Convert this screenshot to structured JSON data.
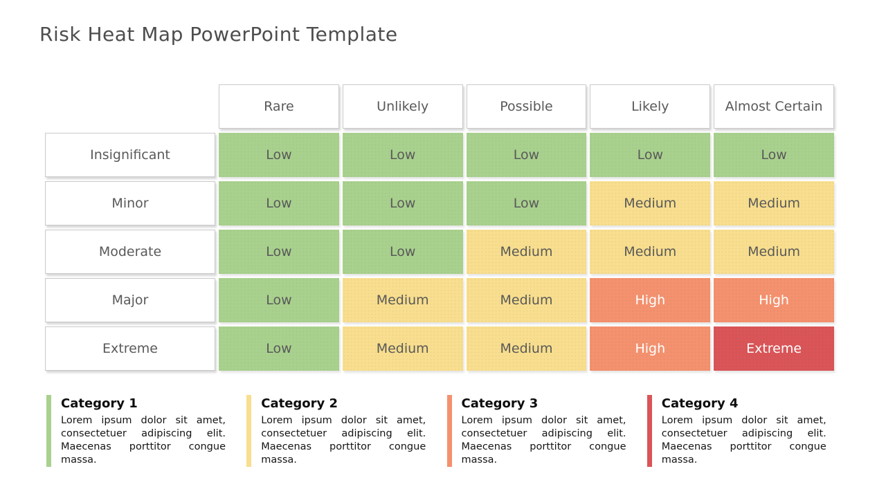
{
  "title": "Risk Heat Map PowerPoint Template",
  "chart_data": {
    "type": "heatmap",
    "title": "Risk Heat Map PowerPoint Template",
    "x_axis_label": "",
    "y_axis_label": "",
    "x_categories": [
      "Rare",
      "Unlikely",
      "Possible",
      "Likely",
      "Almost Certain"
    ],
    "y_categories": [
      "Insignificant",
      "Minor",
      "Moderate",
      "Major",
      "Extreme"
    ],
    "values": [
      [
        "Low",
        "Low",
        "Low",
        "Low",
        "Low"
      ],
      [
        "Low",
        "Low",
        "Low",
        "Medium",
        "Medium"
      ],
      [
        "Low",
        "Low",
        "Medium",
        "Medium",
        "Medium"
      ],
      [
        "Low",
        "Medium",
        "Medium",
        "High",
        "High"
      ],
      [
        "Low",
        "Medium",
        "Medium",
        "High",
        "Extreme"
      ]
    ],
    "level_colors": {
      "Low": {
        "bg": "#a9d18e",
        "text": "#595959"
      },
      "Medium": {
        "bg": "#f8de8e",
        "text": "#595959"
      },
      "High": {
        "bg": "#f4916e",
        "text": "#ffffff"
      },
      "Extreme": {
        "bg": "#d95558",
        "text": "#ffffff"
      }
    },
    "legend_position": "bottom"
  },
  "categories": [
    {
      "label": "Category 1",
      "color": "#a9d18e",
      "description": "Lorem ipsum dolor sit amet, consectetuer adipiscing elit. Maecenas porttitor congue massa."
    },
    {
      "label": "Category 2",
      "color": "#f8de8e",
      "description": "Lorem ipsum dolor sit amet, consectetuer adipiscing elit. Maecenas porttitor congue massa."
    },
    {
      "label": "Category 3",
      "color": "#f4916e",
      "description": "Lorem ipsum dolor sit amet, consectetuer adipiscing elit. Maecenas porttitor congue massa."
    },
    {
      "label": "Category 4",
      "color": "#d95558",
      "description": "Lorem ipsum dolor sit amet, consectetuer adipiscing elit. Maecenas porttitor congue massa."
    }
  ]
}
